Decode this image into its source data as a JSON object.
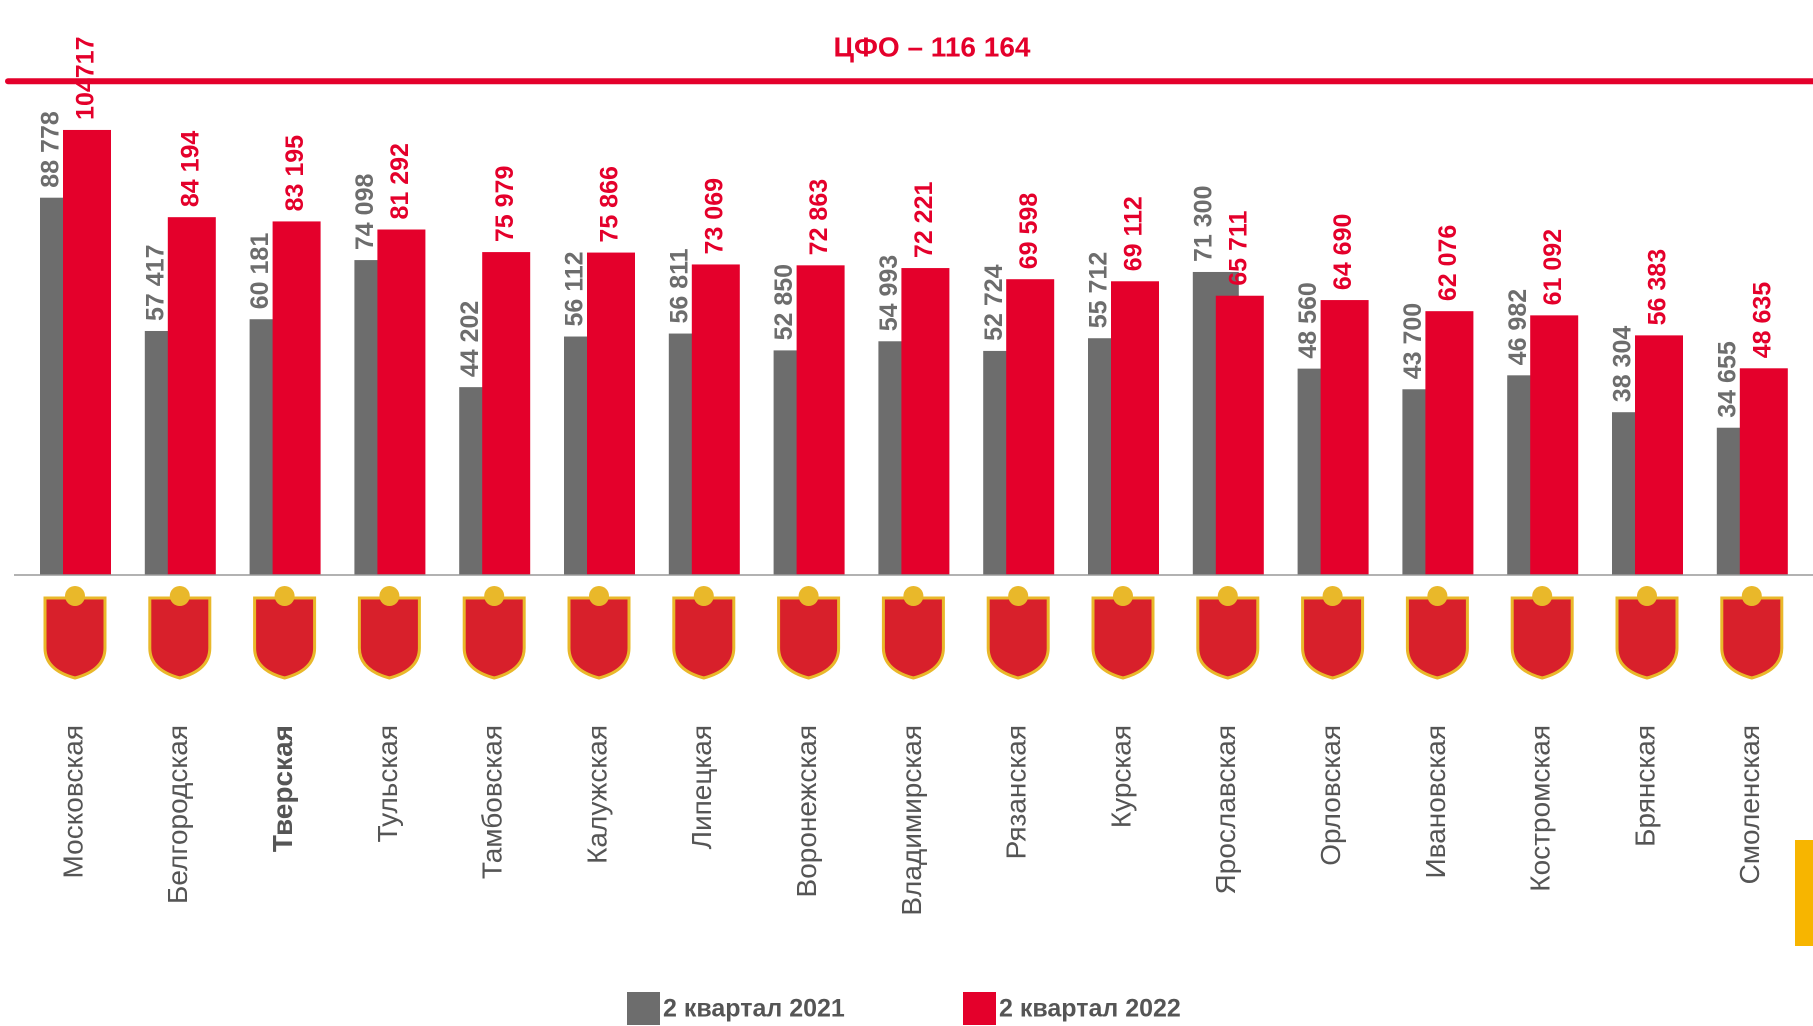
{
  "chart_data": {
    "type": "bar",
    "categories": [
      "Московская",
      "Белгородская",
      "Тверская",
      "Тульская",
      "Тамбовская",
      "Калужская",
      "Липецкая",
      "Воронежская",
      "Владимирская",
      "Рязанская",
      "Курская",
      "Ярославская",
      "Орловская",
      "Ивановская",
      "Костромская",
      "Брянская",
      "Смоленская"
    ],
    "highlight_index": 2,
    "series": [
      {
        "name": "2 квартал 2021",
        "color": "#6d6d6d",
        "values": [
          88778,
          57417,
          60181,
          74098,
          44202,
          56112,
          56811,
          52850,
          54993,
          52724,
          55712,
          71300,
          48560,
          43700,
          46982,
          38304,
          34655
        ],
        "value_labels": [
          "88 778",
          "57 417",
          "60 181",
          "74 098",
          "44 202",
          "56 112",
          "56 811",
          "52 850",
          "54 993",
          "52 724",
          "55 712",
          "71 300",
          "48 560",
          "43 700",
          "46 982",
          "38 304",
          "34 655"
        ]
      },
      {
        "name": "2 квартал 2022",
        "color": "#e4002b",
        "values": [
          104717,
          84194,
          83195,
          81292,
          75979,
          75866,
          73069,
          72863,
          72221,
          69598,
          69112,
          65711,
          64690,
          62076,
          61092,
          56383,
          48635
        ],
        "value_labels": [
          "104717",
          "84 194",
          "83 195",
          "81 292",
          "75 979",
          "75 866",
          "73 069",
          "72 863",
          "72 221",
          "69 598",
          "69 112",
          "65 711",
          "64 690",
          "62 076",
          "61 092",
          "56 383",
          "48 635"
        ]
      }
    ],
    "reference_line": {
      "label": "ЦФО – 116 164",
      "value": 116164,
      "color": "#e4002b"
    },
    "ylim": [
      0,
      120000
    ]
  }
}
